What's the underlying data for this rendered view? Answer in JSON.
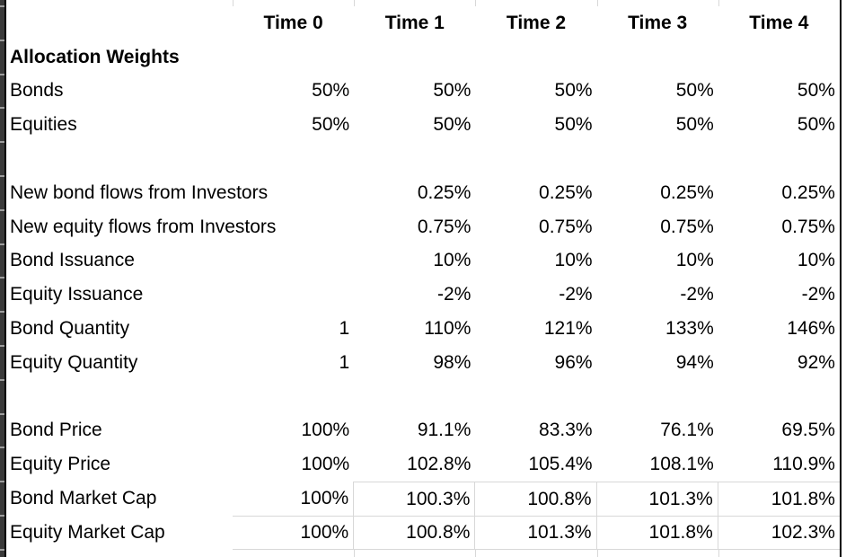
{
  "colors": {
    "gridline": "#d8d8d8",
    "sheet_border": "#000000",
    "row_header_edge": "#3a3a3a",
    "row_header_tick": "#9e9e9e",
    "text": "#000000",
    "background": "#ffffff"
  },
  "sheet": {
    "columns": [
      "",
      "Time 0",
      "Time 1",
      "Time 2",
      "Time 3",
      "Time 4"
    ],
    "rows": [
      {
        "label": "Allocation Weights",
        "bold": true,
        "values": [
          "",
          "",
          "",
          "",
          ""
        ]
      },
      {
        "label": "Bonds",
        "bold": false,
        "values": [
          "50%",
          "50%",
          "50%",
          "50%",
          "50%"
        ]
      },
      {
        "label": "Equities",
        "bold": false,
        "values": [
          "50%",
          "50%",
          "50%",
          "50%",
          "50%"
        ]
      },
      {
        "label": "",
        "bold": false,
        "values": [
          "",
          "",
          "",
          "",
          ""
        ]
      },
      {
        "label": "New bond flows from Investors",
        "bold": false,
        "values": [
          "",
          "0.25%",
          "0.25%",
          "0.25%",
          "0.25%"
        ]
      },
      {
        "label": "New equity flows from Investors",
        "bold": false,
        "values": [
          "",
          "0.75%",
          "0.75%",
          "0.75%",
          "0.75%"
        ]
      },
      {
        "label": "Bond Issuance",
        "bold": false,
        "values": [
          "",
          "10%",
          "10%",
          "10%",
          "10%"
        ]
      },
      {
        "label": "Equity Issuance",
        "bold": false,
        "values": [
          "",
          "-2%",
          "-2%",
          "-2%",
          "-2%"
        ]
      },
      {
        "label": "Bond Quantity",
        "bold": false,
        "values": [
          "1",
          "110%",
          "121%",
          "133%",
          "146%"
        ]
      },
      {
        "label": "Equity Quantity",
        "bold": false,
        "values": [
          "1",
          "98%",
          "96%",
          "94%",
          "92%"
        ]
      },
      {
        "label": "",
        "bold": false,
        "values": [
          "",
          "",
          "",
          "",
          ""
        ]
      },
      {
        "label": "Bond Price",
        "bold": false,
        "values": [
          "100%",
          "91.1%",
          "83.3%",
          "76.1%",
          "69.5%"
        ]
      },
      {
        "label": "Equity Price",
        "bold": false,
        "values": [
          "100%",
          "102.8%",
          "105.4%",
          "108.1%",
          "110.9%"
        ]
      },
      {
        "label": "Bond Market Cap",
        "bold": false,
        "values": [
          "100%",
          "100.3%",
          "100.8%",
          "101.3%",
          "101.8%"
        ]
      },
      {
        "label": "Equity Market Cap",
        "bold": false,
        "values": [
          "100%",
          "100.8%",
          "101.3%",
          "101.8%",
          "102.3%"
        ]
      }
    ]
  }
}
